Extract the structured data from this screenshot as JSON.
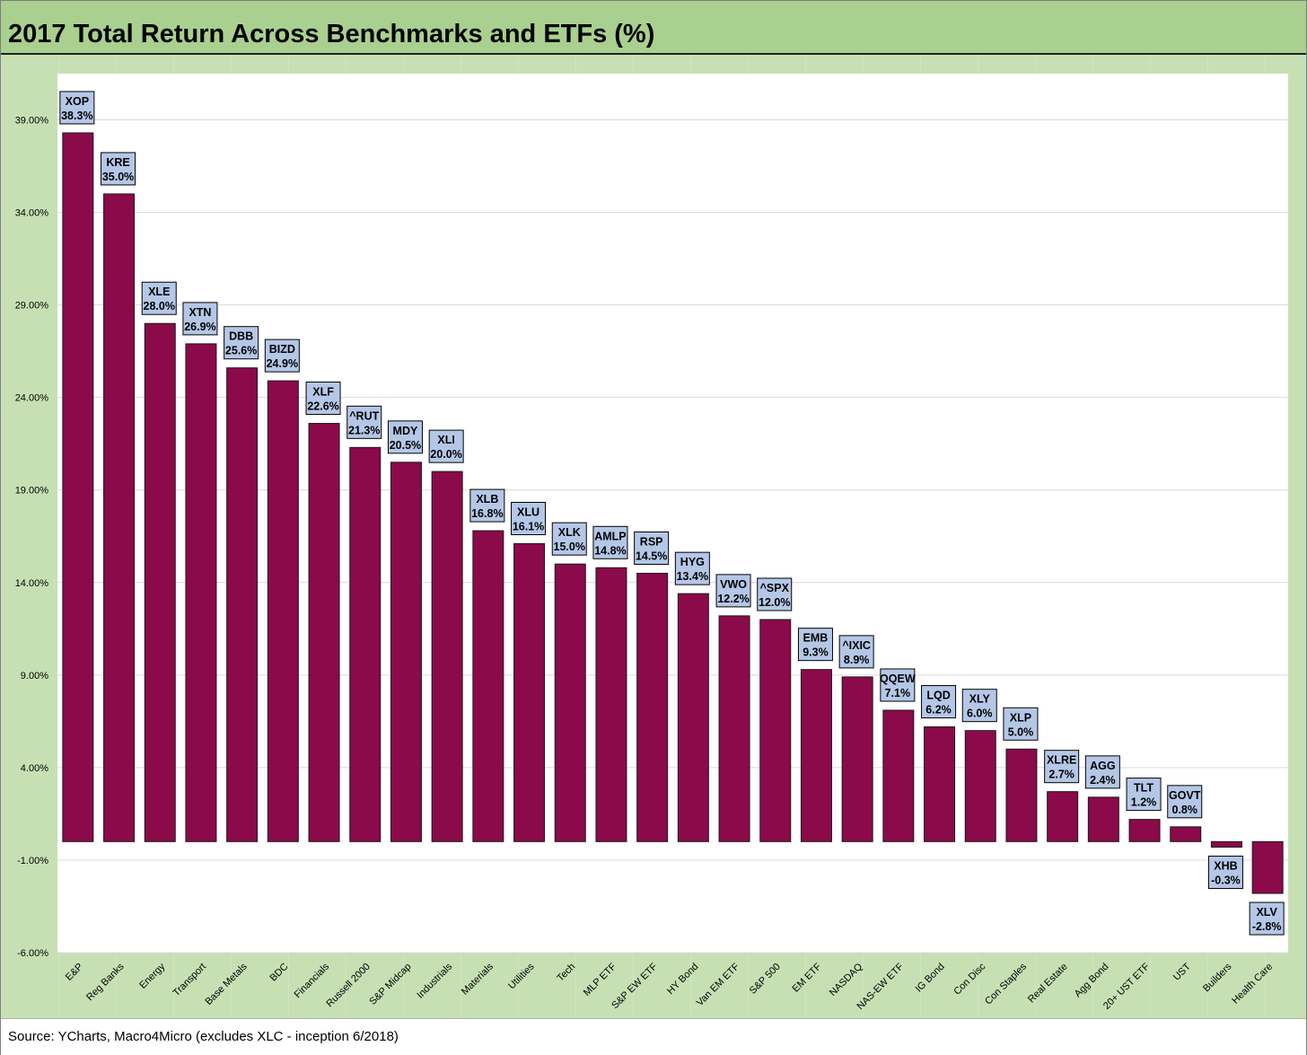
{
  "title": "2017 Total Return Across Benchmarks and ETFs (%)",
  "source": "Source: YCharts, Macro4Micro (excludes XLC - inception 6/2018)",
  "colors": {
    "bar": "#8b0a4a",
    "bar_outline": "#1a1a1a",
    "label_fill": "#b4c7e7",
    "label_border": "#000000",
    "panel_background": "#c6e0b4",
    "title_background": "#a9d08e",
    "plot_background": "#ffffff",
    "gridline": "#d9d9d9"
  },
  "chart_data": {
    "type": "bar",
    "title": "2017 Total Return Across Benchmarks and ETFs (%)",
    "xlabel": "",
    "ylabel": "",
    "ylim": [
      -6,
      41.5
    ],
    "yticks": [
      -6,
      -1,
      4,
      9,
      14,
      19,
      24,
      29,
      34,
      39
    ],
    "ytick_labels": [
      "-6.00%",
      "-1.00%",
      "4.00%",
      "9.00%",
      "14.00%",
      "19.00%",
      "24.00%",
      "29.00%",
      "34.00%",
      "39.00%"
    ],
    "grid": true,
    "legend": "none",
    "categories": [
      "E&P",
      "Reg Banks",
      "Energy",
      "Transport",
      "Base Metals",
      "BDC",
      "Financials",
      "Russell 2000",
      "S&P Midcap",
      "Industrials",
      "Materials",
      "Utilities",
      "Tech",
      "MLP ETF",
      "S&P EW ETF",
      "HY Bond",
      "Van EM ETF",
      "S&P 500",
      "EM ETF",
      "NASDAQ",
      "NAS-EW ETF",
      "IG Bond",
      "Con Disc",
      "Con Staples",
      "Real Estate",
      "Agg Bond",
      "20+ UST ETF",
      "UST",
      "Builders",
      "Health Care"
    ],
    "tickers": [
      "XOP",
      "KRE",
      "XLE",
      "XTN",
      "DBB",
      "BIZD",
      "XLF",
      "^RUT",
      "MDY",
      "XLI",
      "XLB",
      "XLU",
      "XLK",
      "AMLP",
      "RSP",
      "HYG",
      "VWO",
      "^SPX",
      "EMB",
      "^IXIC",
      "QQEW",
      "LQD",
      "XLY",
      "XLP",
      "XLRE",
      "AGG",
      "TLT",
      "GOVT",
      "XHB",
      "XLV"
    ],
    "values": [
      38.3,
      35.0,
      28.0,
      26.9,
      25.6,
      24.9,
      22.6,
      21.3,
      20.5,
      20.0,
      16.8,
      16.1,
      15.0,
      14.8,
      14.5,
      13.4,
      12.2,
      12.0,
      9.3,
      8.9,
      7.1,
      6.2,
      6.0,
      5.0,
      2.7,
      2.4,
      1.2,
      0.8,
      -0.3,
      -2.8
    ],
    "value_labels": [
      "38.3%",
      "35.0%",
      "28.0%",
      "26.9%",
      "25.6%",
      "24.9%",
      "22.6%",
      "21.3%",
      "20.5%",
      "20.0%",
      "16.8%",
      "16.1%",
      "15.0%",
      "14.8%",
      "14.5%",
      "13.4%",
      "12.2%",
      "12.0%",
      "9.3%",
      "8.9%",
      "7.1%",
      "6.2%",
      "6.0%",
      "5.0%",
      "2.7%",
      "2.4%",
      "1.2%",
      "0.8%",
      "-0.3%",
      "-2.8%"
    ]
  }
}
